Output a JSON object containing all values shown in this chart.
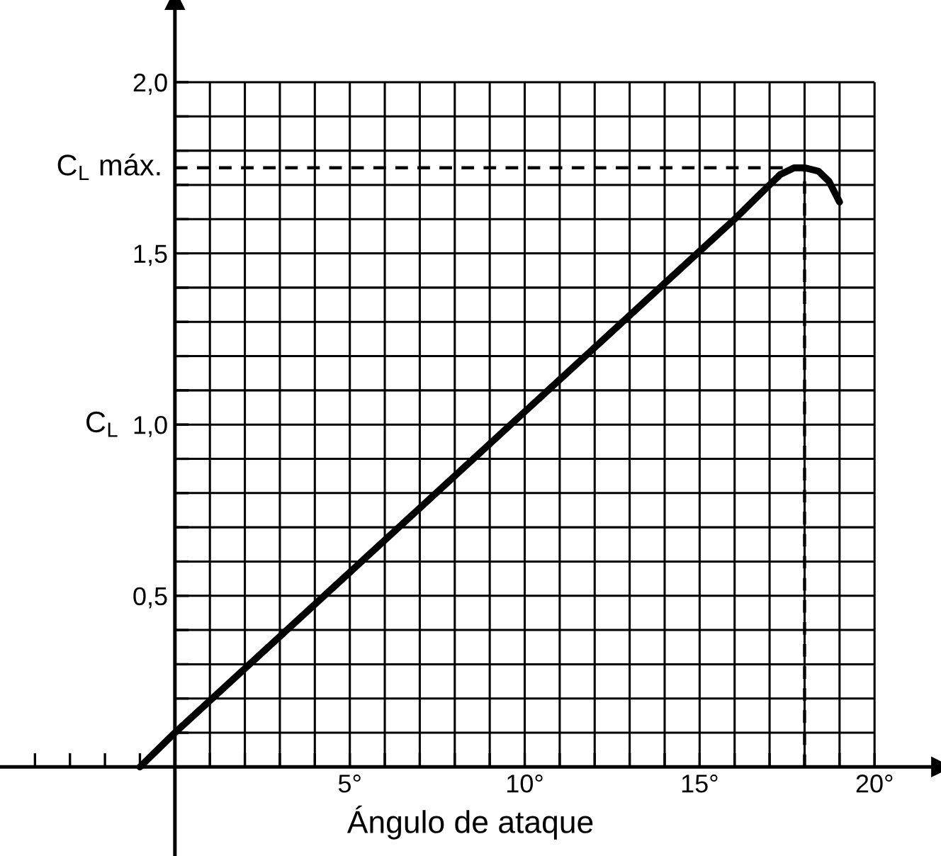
{
  "chart_data": {
    "type": "line",
    "xlabel": "Ángulo de ataque",
    "ylabel": "C$_{L}$",
    "x": [
      -1,
      0,
      16,
      16.8,
      17.3,
      17.7,
      18,
      18.4,
      18.7,
      19
    ],
    "series": [
      {
        "color": "#000000",
        "values": [
          0,
          0.1,
          1.6,
          1.68,
          1.73,
          1.75,
          1.75,
          1.74,
          1.71,
          1.65
        ]
      }
    ],
    "xlim": [
      -5,
      21.9
    ],
    "ylim": [
      -0.26,
      2.24
    ],
    "xticks": [
      {
        "value": -4,
        "label": null
      },
      {
        "value": -3,
        "label": null
      },
      {
        "value": -2,
        "label": null
      },
      {
        "value": -1,
        "label": null
      },
      {
        "value": 1,
        "label": null
      },
      {
        "value": 2,
        "label": null
      },
      {
        "value": 3,
        "label": null
      },
      {
        "value": 4,
        "label": null
      },
      {
        "value": 5,
        "label": "5°"
      },
      {
        "value": 6,
        "label": null
      },
      {
        "value": 7,
        "label": null
      },
      {
        "value": 8,
        "label": null
      },
      {
        "value": 9,
        "label": null
      },
      {
        "value": 10,
        "label": "10°"
      },
      {
        "value": 11,
        "label": null
      },
      {
        "value": 12,
        "label": null
      },
      {
        "value": 13,
        "label": null
      },
      {
        "value": 14,
        "label": null
      },
      {
        "value": 15,
        "label": "15°"
      },
      {
        "value": 16,
        "label": null
      },
      {
        "value": 17,
        "label": null
      },
      {
        "value": 18,
        "label": null
      },
      {
        "value": 19,
        "label": null
      },
      {
        "value": 20,
        "label": "20°"
      }
    ],
    "yticks": [
      {
        "value": 0.1,
        "label": null
      },
      {
        "value": 0.2,
        "label": null
      },
      {
        "value": 0.3,
        "label": null
      },
      {
        "value": 0.4,
        "label": null
      },
      {
        "value": 0.5,
        "label": "0,5"
      },
      {
        "value": 0.6,
        "label": null
      },
      {
        "value": 0.7,
        "label": null
      },
      {
        "value": 0.8,
        "label": null
      },
      {
        "value": 0.9,
        "label": null
      },
      {
        "value": 1.0,
        "label": "1,0"
      },
      {
        "value": 1.1,
        "label": null
      },
      {
        "value": 1.2,
        "label": null
      },
      {
        "value": 1.3,
        "label": null
      },
      {
        "value": 1.4,
        "label": null
      },
      {
        "value": 1.5,
        "label": "1,5"
      },
      {
        "value": 1.6,
        "label": null
      },
      {
        "value": 1.7,
        "label": null
      },
      {
        "value": 1.8,
        "label": null
      },
      {
        "value": 1.9,
        "label": null
      },
      {
        "value": 2.0,
        "label": "2,0"
      }
    ],
    "grid": true,
    "marker": "none",
    "line_style": "solid",
    "ref_lines": [
      {
        "axis": "y",
        "value": 1.75,
        "label": "C$_{L}$ máx.",
        "line_style": "dashed",
        "color": "#000000"
      },
      {
        "axis": "x",
        "value": 18,
        "line_style": "dashed",
        "color": "#000000"
      }
    ]
  }
}
